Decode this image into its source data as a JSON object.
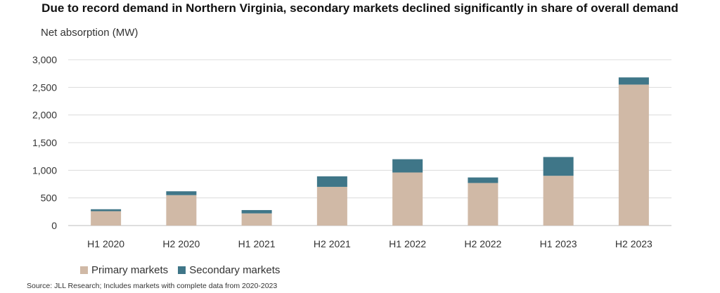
{
  "chart_data": {
    "type": "bar",
    "stacked": true,
    "title": "Due to record demand in Northern Virginia, secondary markets declined significantly in share of overall demand",
    "ylabel": "Net absorption (MW)",
    "xlabel": "",
    "ylim": [
      0,
      3000
    ],
    "yticks": [
      0,
      500,
      1000,
      1500,
      2000,
      2500,
      3000
    ],
    "ytick_labels": [
      "0",
      "500",
      "1,000",
      "1,500",
      "2,000",
      "2,500",
      "3,000"
    ],
    "grid": true,
    "legend_position": "bottom-left",
    "categories": [
      "H1 2020",
      "H2 2020",
      "H1 2021",
      "H2 2021",
      "H1 2022",
      "H2 2022",
      "H1 2023",
      "H2 2023"
    ],
    "series": [
      {
        "name": "Primary markets",
        "color": "#d0b9a6",
        "values": [
          260,
          550,
          220,
          700,
          960,
          770,
          900,
          2550
        ]
      },
      {
        "name": "Secondary markets",
        "color": "#3f7688",
        "values": [
          35,
          70,
          60,
          190,
          240,
          100,
          340,
          130
        ]
      }
    ],
    "source": "Source: JLL Research; Includes markets with complete data from 2020-2023"
  }
}
